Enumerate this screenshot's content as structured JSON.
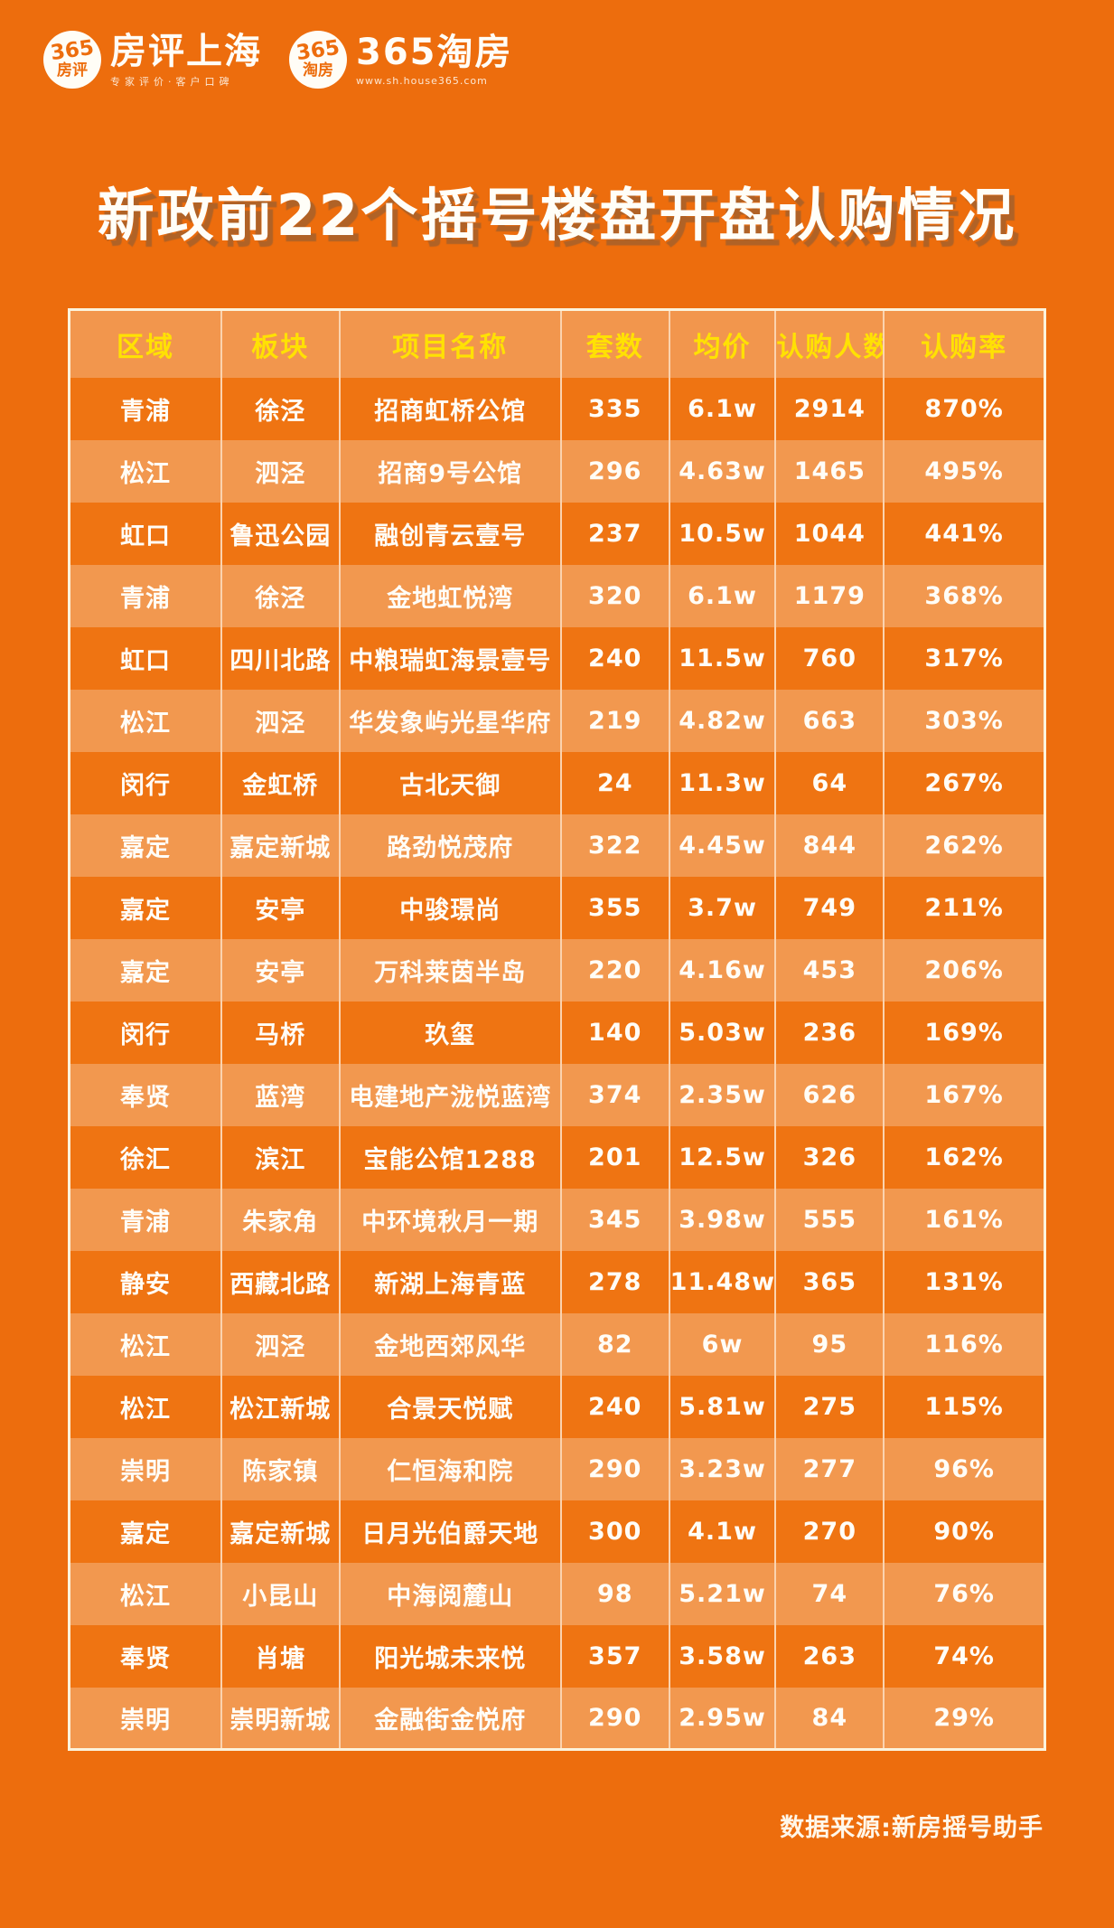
{
  "header": {
    "fangping_logo": {
      "circle_line1": "365",
      "circle_line2": "房评",
      "title": "房评上海",
      "subtitle": "专家评价·客户口碑"
    },
    "taofang_logo": {
      "circle_line1": "365",
      "circle_line2": "淘房",
      "title": "365淘房",
      "url": "www.sh.house365.com"
    }
  },
  "chart_data": {
    "type": "table",
    "title": "新政前22个摇号楼盘开盘认购情况",
    "columns": [
      "区域",
      "板块",
      "项目名称",
      "套数",
      "均价",
      "认购人数",
      "认购率"
    ],
    "rows": [
      [
        "青浦",
        "徐泾",
        "招商虹桥公馆",
        "335",
        "6.1w",
        "2914",
        "870%"
      ],
      [
        "松江",
        "泗泾",
        "招商9号公馆",
        "296",
        "4.63w",
        "1465",
        "495%"
      ],
      [
        "虹口",
        "鲁迅公园",
        "融创青云壹号",
        "237",
        "10.5w",
        "1044",
        "441%"
      ],
      [
        "青浦",
        "徐泾",
        "金地虹悦湾",
        "320",
        "6.1w",
        "1179",
        "368%"
      ],
      [
        "虹口",
        "四川北路",
        "中粮瑞虹海景壹号",
        "240",
        "11.5w",
        "760",
        "317%"
      ],
      [
        "松江",
        "泗泾",
        "华发象屿光星华府",
        "219",
        "4.82w",
        "663",
        "303%"
      ],
      [
        "闵行",
        "金虹桥",
        "古北天御",
        "24",
        "11.3w",
        "64",
        "267%"
      ],
      [
        "嘉定",
        "嘉定新城",
        "路劲悦茂府",
        "322",
        "4.45w",
        "844",
        "262%"
      ],
      [
        "嘉定",
        "安亭",
        "中骏璟尚",
        "355",
        "3.7w",
        "749",
        "211%"
      ],
      [
        "嘉定",
        "安亭",
        "万科莱茵半岛",
        "220",
        "4.16w",
        "453",
        "206%"
      ],
      [
        "闵行",
        "马桥",
        "玖玺",
        "140",
        "5.03w",
        "236",
        "169%"
      ],
      [
        "奉贤",
        "蓝湾",
        "电建地产泷悦蓝湾",
        "374",
        "2.35w",
        "626",
        "167%"
      ],
      [
        "徐汇",
        "滨江",
        "宝能公馆1288",
        "201",
        "12.5w",
        "326",
        "162%"
      ],
      [
        "青浦",
        "朱家角",
        "中环境秋月一期",
        "345",
        "3.98w",
        "555",
        "161%"
      ],
      [
        "静安",
        "西藏北路",
        "新湖上海青蓝",
        "278",
        "11.48w",
        "365",
        "131%"
      ],
      [
        "松江",
        "泗泾",
        "金地西郊风华",
        "82",
        "6w",
        "95",
        "116%"
      ],
      [
        "松江",
        "松江新城",
        "合景天悦赋",
        "240",
        "5.81w",
        "275",
        "115%"
      ],
      [
        "崇明",
        "陈家镇",
        "仁恒海和院",
        "290",
        "3.23w",
        "277",
        "96%"
      ],
      [
        "嘉定",
        "嘉定新城",
        "日月光伯爵天地",
        "300",
        "4.1w",
        "270",
        "90%"
      ],
      [
        "松江",
        "小昆山",
        "中海阅麓山",
        "98",
        "5.21w",
        "74",
        "76%"
      ],
      [
        "奉贤",
        "肖塘",
        "阳光城未来悦",
        "357",
        "3.58w",
        "263",
        "74%"
      ],
      [
        "崇明",
        "崇明新城",
        "金融街金悦府",
        "290",
        "2.95w",
        "84",
        "29%"
      ]
    ],
    "column_width_percents": [
      15.6,
      12.1,
      22.7,
      11.1,
      10.9,
      11.1,
      16.5
    ],
    "row_striping": "odd rows dark orange, even rows light orange, first data row dark"
  },
  "footer": {
    "source": "数据来源:新房摇号助手"
  },
  "colors": {
    "page_bg": "#ED6D0D",
    "row_dark": "#EF7412",
    "row_light": "#F2984F",
    "header_bg": "#F2964D",
    "header_text_yellow": "#FFE103",
    "table_border_cream": "#FCF3DC",
    "cell_text": "#FFFDF7"
  }
}
